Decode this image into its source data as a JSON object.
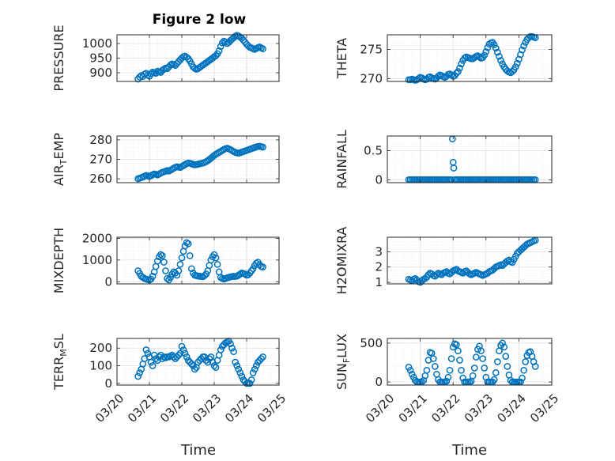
{
  "figure": {
    "title": "Figure 2 low",
    "marker_color": "#0072BD",
    "background": "#ffffff"
  },
  "x_axis": {
    "label": "Time",
    "ticks": [
      "03/20",
      "03/21",
      "03/22",
      "03/23",
      "03/24",
      "03/25"
    ],
    "range_days": [
      0,
      5
    ],
    "start_date": "03/20"
  },
  "chart_data": [
    {
      "type": "scatter",
      "ylabel": "PRESSURE",
      "ylim": [
        870,
        1030
      ],
      "yticks": [
        900,
        950,
        1000
      ],
      "grid": true,
      "x": [
        0.65,
        0.7,
        0.75,
        0.8,
        0.85,
        0.9,
        0.95,
        1.0,
        1.05,
        1.1,
        1.15,
        1.2,
        1.25,
        1.3,
        1.35,
        1.4,
        1.45,
        1.5,
        1.55,
        1.6,
        1.65,
        1.7,
        1.75,
        1.8,
        1.85,
        1.9,
        1.95,
        2.0,
        2.05,
        2.1,
        2.15,
        2.2,
        2.25,
        2.3,
        2.35,
        2.4,
        2.45,
        2.5,
        2.55,
        2.6,
        2.65,
        2.7,
        2.75,
        2.8,
        2.85,
        2.9,
        2.95,
        3.0,
        3.05,
        3.1,
        3.15,
        3.2,
        3.25,
        3.3,
        3.35,
        3.4,
        3.45,
        3.5,
        3.55,
        3.6,
        3.65,
        3.7,
        3.75,
        3.8,
        3.85,
        3.9,
        3.95,
        4.0,
        4.05,
        4.1,
        4.15,
        4.2,
        4.25,
        4.3,
        4.35,
        4.4,
        4.45,
        4.5
      ],
      "y": [
        878,
        885,
        890,
        887,
        895,
        898,
        892,
        888,
        896,
        902,
        900,
        898,
        905,
        903,
        901,
        908,
        912,
        916,
        914,
        920,
        926,
        930,
        928,
        925,
        932,
        938,
        944,
        950,
        955,
        957,
        953,
        948,
        940,
        930,
        920,
        915,
        912,
        914,
        918,
        922,
        926,
        930,
        934,
        938,
        942,
        946,
        950,
        955,
        958,
        965,
        975,
        990,
        1002,
        1008,
        1005,
        1000,
        1004,
        1010,
        1015,
        1020,
        1025,
        1028,
        1026,
        1022,
        1018,
        1012,
        1005,
        998,
        992,
        987,
        985,
        982,
        980,
        983,
        986,
        988,
        985,
        982
      ]
    },
    {
      "type": "scatter",
      "ylabel": "THETA",
      "ylim": [
        269.5,
        277.5
      ],
      "yticks": [
        270,
        275
      ],
      "grid": true,
      "x": [
        0.65,
        0.7,
        0.75,
        0.8,
        0.85,
        0.9,
        0.95,
        1.0,
        1.05,
        1.1,
        1.15,
        1.2,
        1.25,
        1.3,
        1.35,
        1.4,
        1.45,
        1.5,
        1.55,
        1.6,
        1.65,
        1.7,
        1.75,
        1.8,
        1.85,
        1.9,
        1.95,
        2.0,
        2.05,
        2.1,
        2.15,
        2.2,
        2.25,
        2.3,
        2.35,
        2.4,
        2.45,
        2.5,
        2.55,
        2.6,
        2.65,
        2.7,
        2.75,
        2.8,
        2.85,
        2.9,
        2.95,
        3.0,
        3.05,
        3.1,
        3.15,
        3.2,
        3.25,
        3.3,
        3.35,
        3.4,
        3.45,
        3.5,
        3.55,
        3.6,
        3.65,
        3.7,
        3.75,
        3.8,
        3.85,
        3.9,
        3.95,
        4.0,
        4.05,
        4.1,
        4.15,
        4.2,
        4.25,
        4.3,
        4.35,
        4.4,
        4.45,
        4.5
      ],
      "y": [
        269.8,
        269.8,
        269.9,
        269.8,
        269.7,
        269.8,
        270.0,
        270.2,
        270.1,
        269.9,
        269.8,
        269.9,
        270.2,
        270.3,
        270.1,
        270.0,
        269.9,
        270.1,
        270.4,
        270.6,
        270.5,
        270.3,
        270.2,
        270.4,
        270.7,
        270.8,
        270.6,
        270.4,
        270.5,
        270.9,
        271.2,
        271.8,
        272.5,
        273.1,
        273.5,
        273.7,
        273.6,
        273.5,
        273.4,
        273.4,
        273.6,
        273.8,
        273.9,
        273.7,
        273.5,
        273.6,
        274.0,
        274.6,
        275.3,
        275.9,
        276.1,
        276.2,
        275.8,
        275.2,
        274.5,
        273.8,
        273.1,
        272.5,
        272.0,
        271.6,
        271.3,
        271.1,
        271.0,
        271.2,
        271.5,
        272.0,
        272.6,
        273.3,
        274.1,
        274.9,
        275.6,
        276.2,
        276.7,
        277.0,
        277.2,
        277.2,
        277.1,
        277.0
      ]
    },
    {
      "type": "scatter",
      "ylabel": "AIR_TEMP",
      "ylim": [
        258,
        282
      ],
      "yticks": [
        260,
        270,
        280
      ],
      "grid": true,
      "x": [
        0.65,
        0.7,
        0.75,
        0.8,
        0.85,
        0.9,
        0.95,
        1.0,
        1.05,
        1.1,
        1.15,
        1.2,
        1.25,
        1.3,
        1.35,
        1.4,
        1.45,
        1.5,
        1.55,
        1.6,
        1.65,
        1.7,
        1.75,
        1.8,
        1.85,
        1.9,
        1.95,
        2.0,
        2.05,
        2.1,
        2.15,
        2.2,
        2.25,
        2.3,
        2.35,
        2.4,
        2.45,
        2.5,
        2.55,
        2.6,
        2.65,
        2.7,
        2.75,
        2.8,
        2.85,
        2.9,
        2.95,
        3.0,
        3.05,
        3.1,
        3.15,
        3.2,
        3.25,
        3.3,
        3.35,
        3.4,
        3.45,
        3.5,
        3.55,
        3.6,
        3.65,
        3.7,
        3.75,
        3.8,
        3.85,
        3.9,
        3.95,
        4.0,
        4.05,
        4.1,
        4.15,
        4.2,
        4.25,
        4.3,
        4.35,
        4.4,
        4.45,
        4.5
      ],
      "y": [
        260.0,
        260.3,
        260.6,
        260.9,
        261.3,
        261.7,
        261.5,
        261.2,
        261.6,
        262.1,
        262.5,
        262.3,
        262.0,
        262.4,
        262.9,
        263.3,
        263.6,
        263.9,
        264.2,
        264.0,
        264.4,
        264.9,
        265.4,
        265.9,
        266.2,
        266.0,
        265.8,
        266.3,
        266.8,
        267.3,
        267.8,
        268.1,
        268.0,
        267.7,
        267.4,
        267.2,
        267.3,
        267.5,
        267.7,
        267.9,
        268.1,
        268.4,
        268.8,
        269.3,
        269.9,
        270.6,
        271.3,
        272.0,
        272.6,
        273.1,
        273.6,
        274.1,
        274.6,
        275.1,
        275.5,
        275.7,
        275.4,
        275.0,
        274.5,
        274.0,
        273.6,
        273.3,
        273.2,
        273.4,
        273.7,
        274.0,
        274.3,
        274.6,
        274.9,
        275.2,
        275.5,
        275.8,
        276.1,
        276.4,
        276.6,
        276.7,
        276.5,
        276.3
      ]
    },
    {
      "type": "scatter",
      "ylabel": "RAINFALL",
      "ylim": [
        -0.05,
        0.75
      ],
      "yticks": [
        0,
        0.5
      ],
      "grid": true,
      "x": [
        0.65,
        0.7,
        0.75,
        0.8,
        0.85,
        0.9,
        0.95,
        1.0,
        1.05,
        1.1,
        1.15,
        1.2,
        1.25,
        1.3,
        1.35,
        1.4,
        1.45,
        1.5,
        1.55,
        1.6,
        1.65,
        1.7,
        1.75,
        1.8,
        1.85,
        1.9,
        1.95,
        1.98,
        2.0,
        2.02,
        2.05,
        2.1,
        2.15,
        2.2,
        2.25,
        2.3,
        2.35,
        2.4,
        2.45,
        2.5,
        2.55,
        2.6,
        2.65,
        2.7,
        2.75,
        2.8,
        2.85,
        2.9,
        2.95,
        3.0,
        3.05,
        3.1,
        3.15,
        3.2,
        3.25,
        3.3,
        3.35,
        3.4,
        3.45,
        3.5,
        3.55,
        3.6,
        3.65,
        3.7,
        3.75,
        3.8,
        3.85,
        3.9,
        3.95,
        4.0,
        4.05,
        4.1,
        4.15,
        4.2,
        4.25,
        4.3,
        4.35,
        4.4,
        4.45,
        4.5
      ],
      "y": [
        0,
        0,
        0,
        0,
        0,
        0,
        0,
        0,
        0,
        0,
        0,
        0,
        0,
        0,
        0,
        0,
        0,
        0,
        0,
        0,
        0,
        0,
        0,
        0,
        0,
        0,
        0,
        0.7,
        0.3,
        0.2,
        0,
        0,
        0,
        0,
        0,
        0,
        0,
        0,
        0,
        0,
        0,
        0,
        0,
        0,
        0,
        0,
        0,
        0,
        0,
        0,
        0,
        0,
        0,
        0,
        0,
        0,
        0,
        0,
        0,
        0,
        0,
        0,
        0,
        0,
        0,
        0,
        0,
        0,
        0,
        0,
        0,
        0,
        0,
        0,
        0,
        0,
        0,
        0,
        0,
        0
      ]
    },
    {
      "type": "scatter",
      "ylabel": "MIXDEPTH",
      "ylim": [
        -100,
        2050
      ],
      "yticks": [
        0,
        1000,
        2000
      ],
      "grid": true,
      "x": [
        0.65,
        0.7,
        0.75,
        0.8,
        0.85,
        0.9,
        0.95,
        1.0,
        1.05,
        1.1,
        1.15,
        1.2,
        1.25,
        1.3,
        1.35,
        1.4,
        1.45,
        1.5,
        1.55,
        1.6,
        1.65,
        1.7,
        1.75,
        1.8,
        1.85,
        1.9,
        1.95,
        2.0,
        2.05,
        2.1,
        2.15,
        2.2,
        2.25,
        2.3,
        2.35,
        2.4,
        2.45,
        2.5,
        2.55,
        2.6,
        2.65,
        2.7,
        2.75,
        2.8,
        2.85,
        2.9,
        2.95,
        3.0,
        3.05,
        3.1,
        3.15,
        3.2,
        3.25,
        3.3,
        3.35,
        3.4,
        3.45,
        3.5,
        3.55,
        3.6,
        3.65,
        3.7,
        3.75,
        3.8,
        3.85,
        3.9,
        3.95,
        4.0,
        4.05,
        4.1,
        4.15,
        4.2,
        4.25,
        4.3,
        4.35,
        4.4,
        4.45,
        4.5
      ],
      "y": [
        500,
        380,
        250,
        200,
        150,
        120,
        100,
        80,
        120,
        250,
        450,
        700,
        950,
        1150,
        1250,
        1200,
        900,
        500,
        150,
        80,
        200,
        350,
        450,
        400,
        300,
        500,
        800,
        1100,
        1400,
        1650,
        1800,
        1750,
        1200,
        600,
        400,
        300,
        280,
        260,
        250,
        240,
        230,
        280,
        350,
        500,
        750,
        1000,
        1150,
        1250,
        1100,
        800,
        450,
        200,
        150,
        120,
        150,
        180,
        200,
        220,
        240,
        250,
        240,
        260,
        300,
        350,
        400,
        380,
        350,
        300,
        320,
        400,
        500,
        600,
        750,
        850,
        900,
        780,
        700,
        680
      ]
    },
    {
      "type": "scatter",
      "ylabel": "H2OMIXRA",
      "ylim": [
        0.9,
        3.95
      ],
      "yticks": [
        1,
        2,
        3
      ],
      "grid": true,
      "x": [
        0.65,
        0.7,
        0.75,
        0.8,
        0.85,
        0.9,
        0.95,
        1.0,
        1.05,
        1.1,
        1.15,
        1.2,
        1.25,
        1.3,
        1.35,
        1.4,
        1.45,
        1.5,
        1.55,
        1.6,
        1.65,
        1.7,
        1.75,
        1.8,
        1.85,
        1.9,
        1.95,
        2.0,
        2.05,
        2.1,
        2.15,
        2.2,
        2.25,
        2.3,
        2.35,
        2.4,
        2.45,
        2.5,
        2.55,
        2.6,
        2.65,
        2.7,
        2.75,
        2.8,
        2.85,
        2.9,
        2.95,
        3.0,
        3.05,
        3.1,
        3.15,
        3.2,
        3.25,
        3.3,
        3.35,
        3.4,
        3.45,
        3.5,
        3.55,
        3.6,
        3.65,
        3.7,
        3.75,
        3.8,
        3.85,
        3.9,
        3.95,
        4.0,
        4.05,
        4.1,
        4.15,
        4.2,
        4.25,
        4.3,
        4.35,
        4.4,
        4.45,
        4.5
      ],
      "y": [
        1.2,
        1.15,
        1.1,
        1.2,
        1.25,
        1.15,
        1.05,
        1.0,
        1.1,
        1.2,
        1.25,
        1.35,
        1.5,
        1.6,
        1.55,
        1.45,
        1.4,
        1.5,
        1.6,
        1.55,
        1.5,
        1.6,
        1.65,
        1.7,
        1.6,
        1.55,
        1.65,
        1.75,
        1.8,
        1.85,
        1.75,
        1.7,
        1.65,
        1.6,
        1.7,
        1.75,
        1.65,
        1.55,
        1.5,
        1.55,
        1.6,
        1.65,
        1.6,
        1.55,
        1.5,
        1.45,
        1.5,
        1.55,
        1.6,
        1.7,
        1.75,
        1.8,
        1.9,
        2.0,
        2.05,
        2.1,
        2.15,
        2.1,
        2.2,
        2.3,
        2.4,
        2.45,
        2.35,
        2.3,
        2.5,
        2.7,
        2.9,
        3.0,
        3.1,
        3.2,
        3.3,
        3.4,
        3.5,
        3.55,
        3.6,
        3.65,
        3.7,
        3.75
      ]
    },
    {
      "type": "scatter",
      "ylabel": "TERR_MSL",
      "ylim": [
        -10,
        255
      ],
      "yticks": [
        0,
        100,
        200
      ],
      "grid": true,
      "x": [
        0.65,
        0.7,
        0.75,
        0.8,
        0.85,
        0.9,
        0.95,
        1.0,
        1.05,
        1.1,
        1.15,
        1.2,
        1.25,
        1.3,
        1.35,
        1.4,
        1.45,
        1.5,
        1.55,
        1.6,
        1.65,
        1.7,
        1.75,
        1.8,
        1.85,
        1.9,
        1.95,
        2.0,
        2.05,
        2.1,
        2.15,
        2.2,
        2.25,
        2.3,
        2.35,
        2.4,
        2.45,
        2.5,
        2.55,
        2.6,
        2.65,
        2.7,
        2.75,
        2.8,
        2.85,
        2.9,
        2.95,
        3.0,
        3.05,
        3.1,
        3.15,
        3.2,
        3.25,
        3.3,
        3.35,
        3.4,
        3.45,
        3.5,
        3.55,
        3.6,
        3.65,
        3.7,
        3.75,
        3.8,
        3.85,
        3.9,
        3.95,
        4.0,
        4.05,
        4.1,
        4.15,
        4.2,
        4.25,
        4.3,
        4.35,
        4.4,
        4.45,
        4.5
      ],
      "y": [
        40,
        60,
        80,
        110,
        140,
        190,
        170,
        150,
        120,
        100,
        160,
        140,
        130,
        150,
        160,
        140,
        150,
        145,
        150,
        150,
        155,
        160,
        150,
        140,
        150,
        160,
        170,
        210,
        190,
        170,
        150,
        130,
        120,
        110,
        100,
        80,
        90,
        120,
        130,
        140,
        150,
        150,
        130,
        120,
        140,
        150,
        120,
        100,
        90,
        130,
        160,
        190,
        210,
        220,
        230,
        235,
        240,
        225,
        200,
        180,
        120,
        100,
        80,
        60,
        40,
        20,
        10,
        0,
        0,
        0,
        20,
        60,
        80,
        100,
        120,
        130,
        140,
        150
      ]
    },
    {
      "type": "scatter",
      "ylabel": "SUN_FLUX",
      "ylim": [
        -40,
        560
      ],
      "yticks": [
        0,
        500
      ],
      "grid": true,
      "x": [
        0.65,
        0.7,
        0.75,
        0.8,
        0.85,
        0.9,
        0.95,
        1.0,
        1.05,
        1.1,
        1.15,
        1.2,
        1.25,
        1.3,
        1.35,
        1.4,
        1.45,
        1.5,
        1.55,
        1.6,
        1.65,
        1.7,
        1.75,
        1.8,
        1.85,
        1.9,
        1.95,
        2.0,
        2.05,
        2.1,
        2.15,
        2.2,
        2.25,
        2.3,
        2.35,
        2.4,
        2.45,
        2.5,
        2.55,
        2.6,
        2.65,
        2.7,
        2.75,
        2.8,
        2.85,
        2.9,
        2.95,
        3.0,
        3.05,
        3.1,
        3.15,
        3.2,
        3.25,
        3.3,
        3.35,
        3.4,
        3.45,
        3.5,
        3.55,
        3.6,
        3.65,
        3.7,
        3.75,
        3.8,
        3.85,
        3.9,
        3.95,
        4.0,
        4.05,
        4.1,
        4.15,
        4.2,
        4.25,
        4.3,
        4.35,
        4.4,
        4.45,
        4.5
      ],
      "y": [
        190,
        150,
        100,
        60,
        20,
        0,
        0,
        0,
        0,
        20,
        80,
        150,
        280,
        380,
        370,
        300,
        200,
        100,
        30,
        0,
        0,
        0,
        0,
        10,
        60,
        150,
        300,
        450,
        490,
        480,
        400,
        280,
        150,
        50,
        0,
        0,
        0,
        0,
        10,
        80,
        180,
        320,
        420,
        460,
        400,
        300,
        180,
        60,
        0,
        0,
        0,
        0,
        30,
        120,
        260,
        400,
        470,
        500,
        450,
        330,
        200,
        90,
        20,
        0,
        0,
        0,
        0,
        0,
        0,
        50,
        150,
        260,
        340,
        380,
        390,
        330,
        260,
        200
      ]
    }
  ]
}
